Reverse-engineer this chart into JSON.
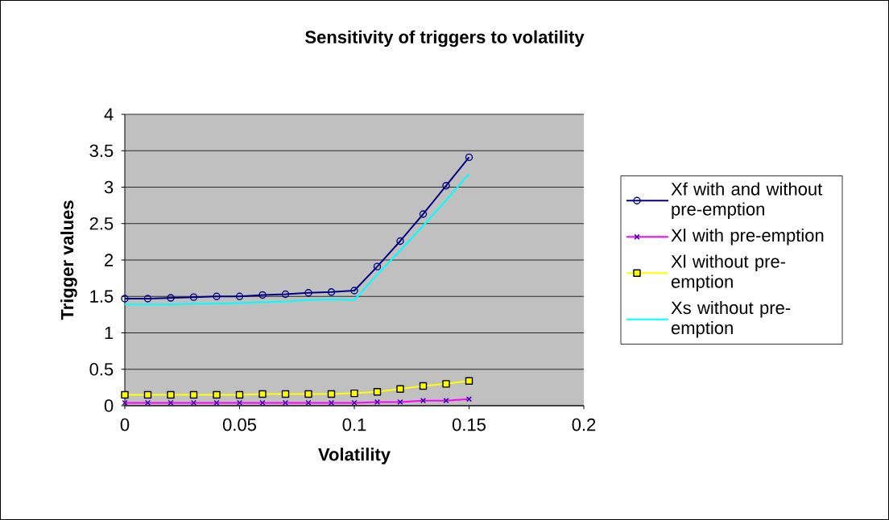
{
  "chart_data": {
    "type": "line",
    "title": "Sensitivity of triggers to volatility",
    "xlabel": "Volatility",
    "ylabel": "Trigger values",
    "x": [
      0,
      0.01,
      0.02,
      0.03,
      0.04,
      0.05,
      0.06,
      0.07,
      0.08,
      0.09,
      0.1,
      0.11,
      0.12,
      0.13,
      0.14,
      0.15
    ],
    "series": [
      {
        "name": "Xf with and without pre-emption",
        "color": "#000080",
        "marker": "circle",
        "values": [
          1.47,
          1.47,
          1.48,
          1.49,
          1.5,
          1.5,
          1.52,
          1.53,
          1.55,
          1.56,
          1.58,
          1.91,
          2.26,
          2.63,
          3.02,
          3.41
        ]
      },
      {
        "name": "Xl with pre-emption",
        "color": "#ff00ff",
        "marker": "cross",
        "values": [
          0.04,
          0.04,
          0.04,
          0.04,
          0.04,
          0.04,
          0.04,
          0.04,
          0.04,
          0.04,
          0.04,
          0.05,
          0.05,
          0.07,
          0.07,
          0.09
        ]
      },
      {
        "name": "Xl without pre-emption",
        "color": "#ffff00",
        "marker": "square",
        "values": [
          0.15,
          0.15,
          0.15,
          0.15,
          0.15,
          0.15,
          0.16,
          0.16,
          0.16,
          0.16,
          0.17,
          0.19,
          0.23,
          0.27,
          0.3,
          0.34
        ]
      },
      {
        "name": "Xs without pre-emption",
        "color": "#00ffff",
        "marker": "none",
        "values": [
          1.39,
          1.39,
          1.39,
          1.4,
          1.4,
          1.41,
          1.42,
          1.43,
          1.45,
          1.46,
          1.45,
          1.8,
          2.13,
          2.47,
          2.82,
          3.18
        ]
      }
    ],
    "xlim": [
      0,
      0.2
    ],
    "xticks": [
      0,
      0.05,
      0.1,
      0.15,
      0.2
    ],
    "ylim": [
      0,
      4
    ],
    "yticks": [
      0,
      0.5,
      1,
      1.5,
      2,
      2.5,
      3,
      3.5,
      4
    ],
    "grid": "y",
    "legend": "right",
    "line_style": "solid"
  }
}
